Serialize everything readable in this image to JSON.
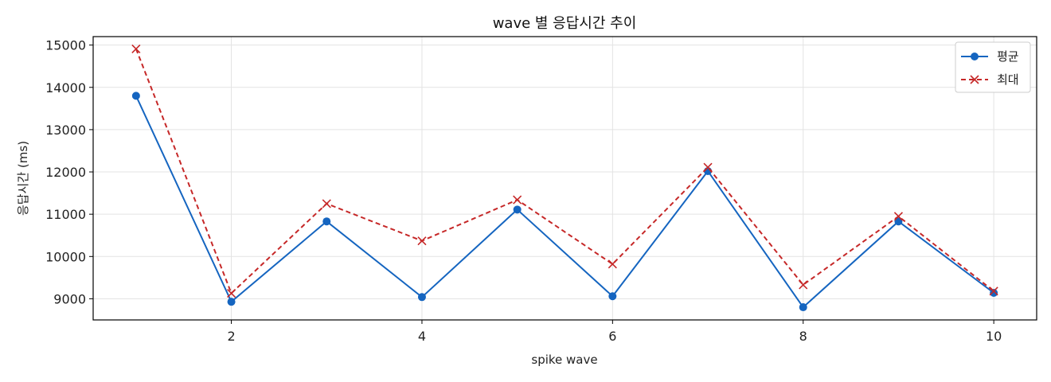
{
  "chart_data": {
    "type": "line",
    "title": "wave 별 응답시간 추이",
    "xlabel": "spike wave",
    "ylabel": "응답시간 (ms)",
    "x": [
      1,
      2,
      3,
      4,
      5,
      6,
      7,
      8,
      9,
      10
    ],
    "xticks": [
      2,
      4,
      6,
      8,
      10
    ],
    "yticks": [
      9000,
      10000,
      11000,
      12000,
      13000,
      14000,
      15000
    ],
    "xlim": [
      0.55,
      10.45
    ],
    "ylim": [
      8500,
      15200
    ],
    "grid": true,
    "legend_position": "top-right",
    "series": [
      {
        "name": "평균",
        "color": "#1565c0",
        "marker": "circle",
        "line_style": "solid",
        "values": [
          13800,
          8930,
          10830,
          9040,
          11110,
          9060,
          12020,
          8800,
          10830,
          9140
        ]
      },
      {
        "name": "최대",
        "color": "#c62828",
        "marker": "x",
        "line_style": "dashed",
        "values": [
          14910,
          9130,
          11250,
          10370,
          11340,
          9820,
          12110,
          9330,
          10950,
          9180
        ]
      }
    ]
  }
}
